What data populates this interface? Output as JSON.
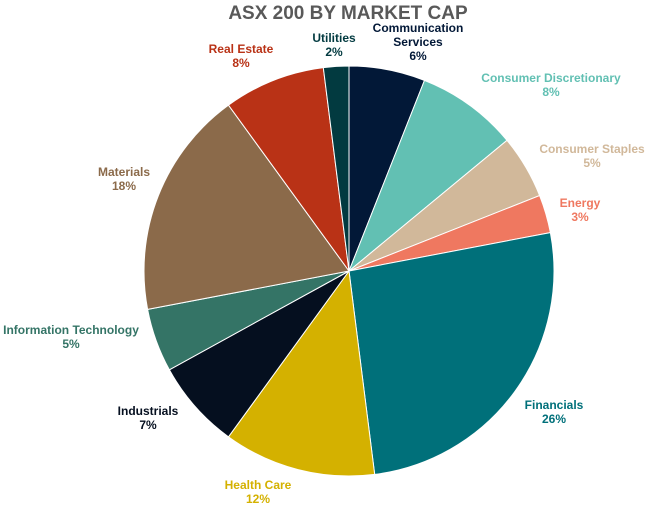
{
  "chart_data": {
    "type": "pie",
    "title": "ASX 200 BY MARKET CAP",
    "slices": [
      {
        "name": "Communication Services",
        "name_lines": [
          "Communication",
          "Services"
        ],
        "value": 6,
        "value_label": "6%",
        "color": "#021837",
        "label_color": "#021837"
      },
      {
        "name": "Consumer Discretionary",
        "name_lines": [
          "Consumer Discretionary"
        ],
        "value": 8,
        "value_label": "8%",
        "color": "#62c0b3",
        "label_color": "#62c0b3"
      },
      {
        "name": "Consumer Staples",
        "name_lines": [
          "Consumer Staples"
        ],
        "value": 5,
        "value_label": "5%",
        "color": "#d1b89a",
        "label_color": "#d1b89a"
      },
      {
        "name": "Energy",
        "name_lines": [
          "Energy"
        ],
        "value": 3,
        "value_label": "3%",
        "color": "#ef7860",
        "label_color": "#ef7860"
      },
      {
        "name": "Financials",
        "name_lines": [
          "Financials"
        ],
        "value": 26,
        "value_label": "26%",
        "color": "#00707a",
        "label_color": "#00707a"
      },
      {
        "name": "Health Care",
        "name_lines": [
          "Health Care"
        ],
        "value": 12,
        "value_label": "12%",
        "color": "#d4b100",
        "label_color": "#d4b100"
      },
      {
        "name": "Industrials",
        "name_lines": [
          "Industrials"
        ],
        "value": 7,
        "value_label": "7%",
        "color": "#050f1f",
        "label_color": "#050f1f"
      },
      {
        "name": "Information Technology",
        "name_lines": [
          "Information Technology"
        ],
        "value": 5,
        "value_label": "5%",
        "color": "#347466",
        "label_color": "#347466"
      },
      {
        "name": "Materials",
        "name_lines": [
          "Materials"
        ],
        "value": 18,
        "value_label": "18%",
        "color": "#8b6a4a",
        "label_color": "#8b6a4a"
      },
      {
        "name": "Real Estate",
        "name_lines": [
          "Real Estate"
        ],
        "value": 8,
        "value_label": "8%",
        "color": "#b93216",
        "label_color": "#b93216"
      },
      {
        "name": "Utilities",
        "name_lines": [
          "Utilities"
        ],
        "value": 2,
        "value_label": "2%",
        "color": "#023a40",
        "label_color": "#023a40"
      }
    ],
    "legend": "none"
  }
}
